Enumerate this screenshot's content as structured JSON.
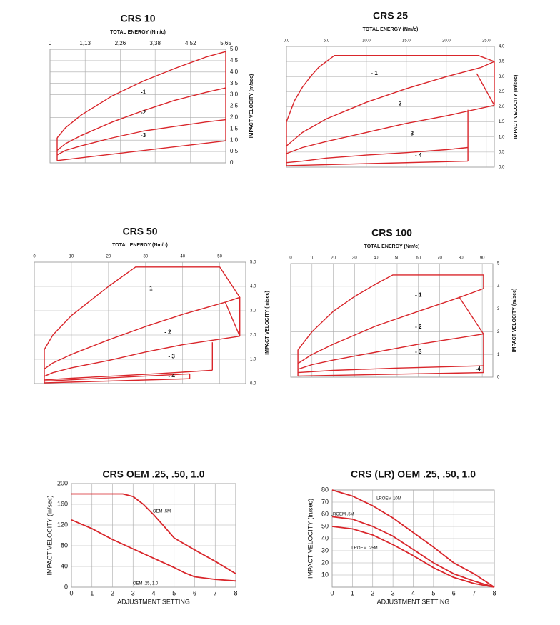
{
  "chart_data": [
    {
      "type": "line",
      "title": "CRS 10",
      "xlabel": "TOTAL ENERGY (Nm/c)",
      "ylabel": "IMPACT VELOCITY (m/sec)",
      "xaxis": "top",
      "yaxis": "right",
      "grid": true,
      "color": "#d9262b",
      "xlim": [
        0,
        5.65
      ],
      "ylim": [
        0,
        5.0
      ],
      "xticks": [
        0,
        {
          "value": 1.13,
          "label": "1,13"
        },
        {
          "value": 2.26,
          "label": "2,26"
        },
        {
          "value": 3.38,
          "label": "3,38"
        },
        {
          "value": 4.52,
          "label": "4,52"
        },
        {
          "value": 5.65,
          "label": "5,65"
        }
      ],
      "yticks": [
        0,
        {
          "value": 0.5,
          "label": "0,5"
        },
        {
          "value": 1.0,
          "label": "1,0"
        },
        {
          "value": 1.5,
          "label": "1,5"
        },
        {
          "value": 2.0,
          "label": "2,0"
        },
        {
          "value": 2.5,
          "label": "2,5"
        },
        {
          "value": 3.0,
          "label": "3,0"
        },
        {
          "value": 3.5,
          "label": "3,5"
        },
        {
          "value": 4.0,
          "label": "4,0"
        },
        {
          "value": 4.5,
          "label": "4,5"
        },
        {
          "value": 5.0,
          "label": "5,0"
        }
      ],
      "series": [
        {
          "x": [
            0.23,
            0.5,
            1,
            2,
            3,
            4,
            5,
            5.65
          ],
          "values": [
            1.1,
            1.55,
            2.1,
            2.95,
            3.6,
            4.15,
            4.65,
            4.9
          ]
        },
        {
          "x": [
            0.23,
            0.5,
            1,
            2,
            3,
            4,
            5,
            5.65
          ],
          "values": [
            0.55,
            0.85,
            1.2,
            1.8,
            2.3,
            2.75,
            3.1,
            3.3
          ]
        },
        {
          "x": [
            0.23,
            0.5,
            1,
            2,
            3,
            4,
            5,
            5.65
          ],
          "values": [
            0.35,
            0.55,
            0.75,
            1.1,
            1.4,
            1.6,
            1.8,
            1.9
          ]
        },
        {
          "x": [
            0.23,
            5.65
          ],
          "values": [
            0.1,
            0.97
          ]
        },
        {
          "x": [
            0.23,
            0.23
          ],
          "values": [
            0.1,
            1.1
          ]
        },
        {
          "x": [
            5.65,
            5.65
          ],
          "values": [
            0.97,
            4.9
          ]
        }
      ],
      "annotations": [
        {
          "text": "-1",
          "x": 3.0,
          "y": 3.1
        },
        {
          "text": "-2",
          "x": 3.0,
          "y": 2.2
        },
        {
          "text": "-3",
          "x": 3.0,
          "y": 1.2
        }
      ]
    },
    {
      "type": "line",
      "title": "CRS 25",
      "xlabel": "TOTAL ENERGY (Nm/c)",
      "ylabel": "IMPACT VELOCITY (m/sec)",
      "xaxis": "top",
      "yaxis": "right",
      "grid": true,
      "color": "#d9262b",
      "xlim": [
        0,
        26
      ],
      "ylim": [
        0,
        4
      ],
      "xticks": [
        {
          "value": 0,
          "label": "0.0"
        },
        {
          "value": 5,
          "label": "5.0"
        },
        {
          "value": 10,
          "label": "10.0"
        },
        {
          "value": 15,
          "label": "15.0"
        },
        {
          "value": 20,
          "label": "20.0"
        },
        {
          "value": 25,
          "label": "25.0"
        }
      ],
      "yticks": [
        {
          "value": 0,
          "label": "0.0"
        },
        0.5,
        {
          "value": 1,
          "label": "1.0"
        },
        1.5,
        {
          "value": 2,
          "label": "2.0"
        },
        2.5,
        {
          "value": 3,
          "label": "3.0"
        },
        3.5,
        {
          "value": 4,
          "label": "4.0"
        }
      ],
      "series": [
        {
          "x": [
            0,
            1,
            2,
            3,
            4,
            5,
            6,
            24,
            26,
            24.3
          ],
          "values": [
            1.5,
            2.2,
            2.65,
            3.0,
            3.3,
            3.5,
            3.7,
            3.7,
            3.5,
            3.3
          ]
        },
        {
          "x": [
            0,
            2,
            5,
            10,
            15,
            20,
            24.3
          ],
          "values": [
            0.7,
            1.15,
            1.6,
            2.15,
            2.6,
            3.0,
            3.3
          ]
        },
        {
          "x": [
            23.8,
            26
          ],
          "values": [
            3.1,
            2.05
          ]
        },
        {
          "x": [
            0,
            2,
            5,
            10,
            15,
            20,
            26
          ],
          "values": [
            0.45,
            0.65,
            0.85,
            1.15,
            1.45,
            1.7,
            2.05
          ]
        },
        {
          "x": [
            26,
            26
          ],
          "values": [
            2.05,
            3.5
          ]
        },
        {
          "x": [
            0,
            2,
            5,
            10,
            15,
            20,
            22.7
          ],
          "values": [
            0.15,
            0.2,
            0.3,
            0.4,
            0.48,
            0.58,
            0.65
          ]
        },
        {
          "x": [
            22.7,
            22.7
          ],
          "values": [
            1.9,
            0.2
          ]
        },
        {
          "x": [
            0,
            22.7
          ],
          "values": [
            0.05,
            0.2
          ]
        },
        {
          "x": [
            0,
            0
          ],
          "values": [
            0.05,
            1.5
          ]
        }
      ],
      "annotations": [
        {
          "text": "- 1",
          "x": 11,
          "y": 3.1
        },
        {
          "text": "- 2",
          "x": 14,
          "y": 2.1
        },
        {
          "text": "- 3",
          "x": 15.5,
          "y": 1.1
        },
        {
          "text": "- 4",
          "x": 16.5,
          "y": 0.38
        }
      ]
    },
    {
      "type": "line",
      "title": "CRS 50",
      "xlabel": "TOTAL ENERGY (Nm/c)",
      "ylabel": "IMPACT VELOCITY (m/sec)",
      "xaxis": "top",
      "yaxis": "right",
      "grid": true,
      "color": "#d9262b",
      "xlim": [
        0,
        57
      ],
      "ylim": [
        0,
        5
      ],
      "xticks": [
        0,
        10,
        20,
        30,
        40,
        50
      ],
      "yticks": [
        {
          "value": 0,
          "label": "0.0"
        },
        {
          "value": 1,
          "label": "1.0"
        },
        {
          "value": 2,
          "label": "2.0"
        },
        {
          "value": 3,
          "label": "3.0"
        },
        {
          "value": 4,
          "label": "4.0"
        },
        {
          "value": 5,
          "label": "5.0"
        }
      ],
      "series": [
        {
          "x": [
            2.7,
            5,
            10,
            15,
            20,
            27.3,
            50,
            55.4,
            51.5
          ],
          "values": [
            1.4,
            2.0,
            2.8,
            3.4,
            4.0,
            4.8,
            4.8,
            3.55,
            3.35
          ]
        },
        {
          "x": [
            2.7,
            5,
            10,
            20,
            30,
            40,
            51.5
          ],
          "values": [
            0.6,
            0.85,
            1.2,
            1.8,
            2.35,
            2.85,
            3.35
          ]
        },
        {
          "x": [
            51.5,
            55.4
          ],
          "values": [
            3.35,
            1.95
          ]
        },
        {
          "x": [
            2.7,
            5,
            10,
            20,
            30,
            40,
            55.4
          ],
          "values": [
            0.3,
            0.45,
            0.65,
            0.95,
            1.3,
            1.6,
            1.95
          ]
        },
        {
          "x": [
            55.4,
            55.4
          ],
          "values": [
            1.95,
            3.55
          ]
        },
        {
          "x": [
            48,
            48
          ],
          "values": [
            1.7,
            0.55
          ]
        },
        {
          "x": [
            2.7,
            10,
            20,
            30,
            40,
            48
          ],
          "values": [
            0.15,
            0.22,
            0.3,
            0.38,
            0.47,
            0.55
          ]
        },
        {
          "x": [
            2.7,
            41.9
          ],
          "values": [
            0.1,
            0.4
          ]
        },
        {
          "x": [
            41.9,
            41.9
          ],
          "values": [
            0.4,
            0.2
          ]
        },
        {
          "x": [
            2.7,
            41.9
          ],
          "values": [
            0.03,
            0.2
          ]
        },
        {
          "x": [
            2.7,
            2.7
          ],
          "values": [
            0.03,
            1.4
          ]
        }
      ],
      "annotations": [
        {
          "text": "- 1",
          "x": 31,
          "y": 3.9
        },
        {
          "text": "- 2",
          "x": 36,
          "y": 2.1
        },
        {
          "text": "- 3",
          "x": 37,
          "y": 1.1
        },
        {
          "text": "- 4",
          "x": 37,
          "y": 0.3
        }
      ]
    },
    {
      "type": "line",
      "title": "CRS 100",
      "xlabel": "TOTAL ENERGY (Nm/c)",
      "ylabel": "IMPACT VELOCITY (m/sec)",
      "xaxis": "top",
      "yaxis": "right",
      "grid": true,
      "color": "#d9262b",
      "xlim": [
        0,
        95
      ],
      "ylim": [
        0,
        5
      ],
      "xticks": [
        0,
        10,
        20,
        30,
        40,
        50,
        60,
        70,
        80,
        90
      ],
      "yticks": [
        0,
        1,
        2,
        3,
        4,
        5
      ],
      "series": [
        {
          "x": [
            3.4,
            10,
            20,
            30,
            40,
            48,
            90.6,
            90.6
          ],
          "values": [
            1.2,
            2.0,
            2.9,
            3.55,
            4.1,
            4.5,
            4.5,
            3.9
          ]
        },
        {
          "x": [
            3.4,
            10,
            20,
            40,
            60,
            79,
            90.6
          ],
          "values": [
            0.6,
            1.0,
            1.45,
            2.25,
            2.9,
            3.5,
            3.9
          ]
        },
        {
          "x": [
            79,
            90.6
          ],
          "values": [
            3.55,
            1.9
          ]
        },
        {
          "x": [
            3.4,
            10,
            20,
            40,
            60,
            90.6
          ],
          "values": [
            0.35,
            0.55,
            0.75,
            1.1,
            1.45,
            1.9
          ]
        },
        {
          "x": [
            90.6,
            90.6
          ],
          "values": [
            0.2,
            1.9
          ]
        },
        {
          "x": [
            3.4,
            20,
            50,
            90.6
          ],
          "values": [
            0.2,
            0.3,
            0.4,
            0.5
          ]
        },
        {
          "x": [
            3.4,
            90.6
          ],
          "values": [
            0.05,
            0.2
          ]
        },
        {
          "x": [
            3.4,
            3.4
          ],
          "values": [
            0.05,
            1.2
          ]
        }
      ],
      "annotations": [
        {
          "text": "- 1",
          "x": 60,
          "y": 3.6
        },
        {
          "text": "- 2",
          "x": 60,
          "y": 2.2
        },
        {
          "text": "- 3",
          "x": 60,
          "y": 1.1
        },
        {
          "text": "-4",
          "x": 88,
          "y": 0.35
        }
      ]
    },
    {
      "type": "line",
      "title": "CRS OEM .25, .50, 1.0",
      "xlabel": "ADJUSTMENT SETTING",
      "ylabel": "IMPACT VELOCITY (in/sec)",
      "xaxis": "bottom",
      "yaxis": "left",
      "grid": true,
      "color": "#d9262b",
      "xlim": [
        0,
        8
      ],
      "ylim": [
        0,
        200
      ],
      "xticks": [
        0,
        1,
        2,
        3,
        4,
        5,
        6,
        7,
        8
      ],
      "yticks": [
        0,
        40,
        80,
        120,
        160,
        200
      ],
      "series": [
        {
          "x": [
            0,
            1,
            2,
            2.5,
            3,
            3.5,
            4,
            4.5,
            5,
            6,
            7,
            8
          ],
          "values": [
            180,
            180,
            180,
            180,
            175,
            160,
            140,
            118,
            95,
            72,
            50,
            26
          ]
        },
        {
          "x": [
            0,
            1,
            2,
            3,
            4,
            5,
            5.5,
            6,
            7,
            8
          ],
          "values": [
            130,
            113,
            92,
            74,
            56,
            38,
            28,
            20,
            15,
            12
          ]
        }
      ],
      "annotations": [
        {
          "text": "OEM .5M",
          "x": 4.4,
          "y": 146
        },
        {
          "text": "OEM .25, 1.0",
          "x": 3.6,
          "y": 7
        }
      ]
    },
    {
      "type": "line",
      "title": "CRS (LR) OEM .25, .50, 1.0",
      "xlabel": "ADJUSTMENT SETTING",
      "ylabel": "IMPACT VELOCITY (in/sec)",
      "xaxis": "bottom",
      "yaxis": "left",
      "grid": true,
      "color": "#d9262b",
      "xlim": [
        0,
        8
      ],
      "ylim": [
        0,
        80
      ],
      "xticks": [
        0,
        1,
        2,
        3,
        4,
        5,
        6,
        7,
        8
      ],
      "yticks": [
        10,
        20,
        30,
        40,
        50,
        60,
        70,
        80
      ],
      "series": [
        {
          "x": [
            0,
            1,
            2,
            3,
            4,
            5,
            6,
            7,
            8
          ],
          "values": [
            80,
            75,
            67,
            57,
            45,
            33,
            20,
            11,
            0
          ]
        },
        {
          "x": [
            0,
            1,
            2,
            3,
            4,
            5,
            6,
            7,
            8
          ],
          "values": [
            58,
            56,
            50,
            42,
            31,
            20,
            11,
            5,
            0
          ]
        },
        {
          "x": [
            0,
            1,
            2,
            3,
            4,
            5,
            6,
            7,
            8
          ],
          "values": [
            50,
            48,
            43,
            35,
            26,
            16,
            8,
            3,
            0
          ]
        }
      ],
      "annotations": [
        {
          "text": "LROEM 10M",
          "x": 2.8,
          "y": 73
        },
        {
          "text": "LROEM .5M",
          "x": 0.5,
          "y": 60
        },
        {
          "text": "LROEM .25M",
          "x": 1.6,
          "y": 32
        }
      ]
    }
  ]
}
